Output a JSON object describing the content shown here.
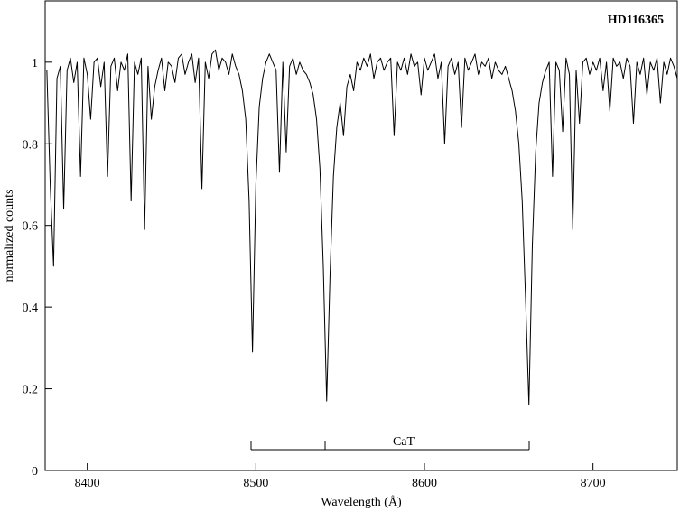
{
  "chart_data": {
    "type": "line",
    "annotations": [
      "HD116365",
      "CaT"
    ],
    "xlabel": "Wavelength  (Å)",
    "ylabel": "normalized counts",
    "xlim": [
      8375,
      8750
    ],
    "ylim": [
      0,
      1.15
    ],
    "xticks": [
      8400,
      8500,
      8600,
      8700
    ],
    "yticks": [
      0,
      0.2,
      0.4,
      0.6,
      0.8,
      1
    ],
    "grid": false,
    "series": [
      {
        "color": "#000000",
        "x": [
          8376,
          8378,
          8380,
          8382,
          8384,
          8386,
          8388,
          8390,
          8392,
          8394,
          8396,
          8398,
          8400,
          8402,
          8404,
          8406,
          8408,
          8410,
          8412,
          8414,
          8416,
          8418,
          8420,
          8422,
          8424,
          8426,
          8428,
          8430,
          8432,
          8434,
          8436,
          8438,
          8440,
          8442,
          8444,
          8446,
          8448,
          8450,
          8452,
          8454,
          8456,
          8458,
          8460,
          8462,
          8464,
          8466,
          8468,
          8470,
          8472,
          8474,
          8476,
          8478,
          8480,
          8482,
          8484,
          8486,
          8488,
          8490,
          8492,
          8494,
          8496,
          8498,
          8500,
          8502,
          8504,
          8506,
          8508,
          8510,
          8512,
          8514,
          8516,
          8518,
          8520,
          8522,
          8524,
          8526,
          8528,
          8530,
          8532,
          8534,
          8536,
          8538,
          8540,
          8542,
          8544,
          8546,
          8548,
          8550,
          8552,
          8554,
          8556,
          8558,
          8560,
          8562,
          8564,
          8566,
          8568,
          8570,
          8572,
          8574,
          8576,
          8578,
          8580,
          8582,
          8584,
          8586,
          8588,
          8590,
          8592,
          8594,
          8596,
          8598,
          8600,
          8602,
          8604,
          8606,
          8608,
          8610,
          8612,
          8614,
          8616,
          8618,
          8620,
          8622,
          8624,
          8626,
          8628,
          8630,
          8632,
          8634,
          8636,
          8638,
          8640,
          8642,
          8644,
          8646,
          8648,
          8650,
          8652,
          8654,
          8656,
          8658,
          8660,
          8662,
          8664,
          8666,
          8668,
          8670,
          8672,
          8674,
          8676,
          8678,
          8680,
          8682,
          8684,
          8686,
          8688,
          8690,
          8692,
          8694,
          8696,
          8698,
          8700,
          8702,
          8704,
          8706,
          8708,
          8710,
          8712,
          8714,
          8716,
          8718,
          8720,
          8722,
          8724,
          8726,
          8728,
          8730,
          8732,
          8734,
          8736,
          8738,
          8740,
          8742,
          8744,
          8746,
          8748,
          8750
        ],
        "values": [
          0.98,
          0.7,
          0.5,
          0.96,
          0.99,
          0.64,
          0.98,
          1.01,
          0.95,
          1.0,
          0.72,
          1.01,
          0.97,
          0.86,
          1.0,
          1.01,
          0.94,
          1.0,
          0.72,
          0.99,
          1.01,
          0.93,
          1.0,
          0.98,
          1.02,
          0.66,
          1.0,
          0.97,
          1.01,
          0.59,
          0.99,
          0.86,
          0.94,
          0.98,
          1.01,
          0.93,
          1.0,
          0.99,
          0.95,
          1.01,
          1.02,
          0.97,
          1.0,
          1.02,
          0.95,
          1.01,
          0.69,
          1.0,
          0.96,
          1.02,
          1.03,
          0.98,
          1.01,
          1.0,
          0.97,
          1.02,
          0.99,
          0.97,
          0.93,
          0.86,
          0.66,
          0.29,
          0.7,
          0.89,
          0.96,
          1.0,
          1.02,
          1.0,
          0.98,
          0.73,
          1.0,
          0.78,
          0.99,
          1.01,
          0.97,
          1.0,
          0.98,
          0.97,
          0.95,
          0.92,
          0.86,
          0.74,
          0.5,
          0.17,
          0.48,
          0.72,
          0.84,
          0.9,
          0.82,
          0.94,
          0.97,
          0.93,
          1.0,
          0.98,
          1.01,
          0.99,
          1.02,
          0.96,
          1.0,
          1.01,
          0.98,
          1.0,
          1.01,
          0.82,
          1.0,
          0.98,
          1.01,
          0.97,
          1.02,
          0.99,
          1.0,
          0.92,
          1.01,
          0.98,
          1.0,
          1.02,
          0.96,
          1.0,
          0.8,
          0.99,
          1.01,
          0.97,
          1.0,
          0.84,
          1.01,
          0.98,
          1.0,
          1.02,
          0.97,
          1.0,
          0.99,
          1.01,
          0.96,
          1.0,
          0.98,
          0.97,
          0.99,
          0.96,
          0.93,
          0.88,
          0.8,
          0.66,
          0.42,
          0.16,
          0.55,
          0.78,
          0.9,
          0.95,
          0.98,
          1.0,
          0.72,
          1.0,
          0.98,
          0.83,
          1.01,
          0.97,
          0.59,
          0.98,
          0.85,
          1.0,
          1.01,
          0.97,
          1.0,
          0.98,
          1.01,
          0.93,
          1.0,
          0.88,
          1.01,
          0.99,
          1.0,
          0.96,
          1.01,
          0.99,
          0.85,
          1.0,
          0.97,
          1.01,
          0.92,
          1.0,
          0.98,
          1.01,
          0.9,
          1.0,
          0.97,
          1.01,
          0.99,
          0.96
        ]
      }
    ]
  }
}
